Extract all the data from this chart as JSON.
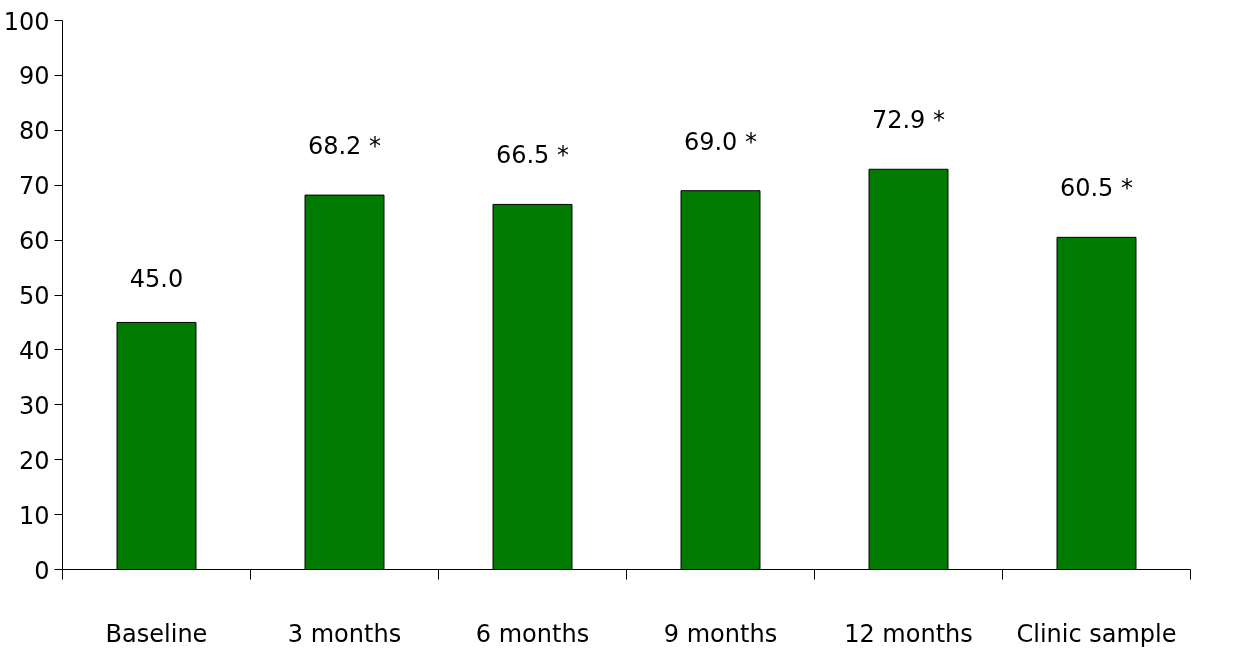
{
  "chart_data": {
    "type": "bar",
    "categories": [
      "Baseline",
      "3 months",
      "6 months",
      "9 months",
      "12 months",
      "Clinic sample"
    ],
    "values": [
      45.0,
      68.2,
      66.5,
      69.0,
      72.9,
      60.5
    ],
    "value_labels": [
      "45.0",
      "68.2 *",
      "66.5 *",
      "69.0 *",
      "72.9 *",
      "60.5 *"
    ],
    "color": "#007a00",
    "ylim": [
      0,
      100
    ],
    "yticks": [
      0,
      10,
      20,
      30,
      40,
      50,
      60,
      70,
      80,
      90,
      100
    ],
    "grid": false
  }
}
